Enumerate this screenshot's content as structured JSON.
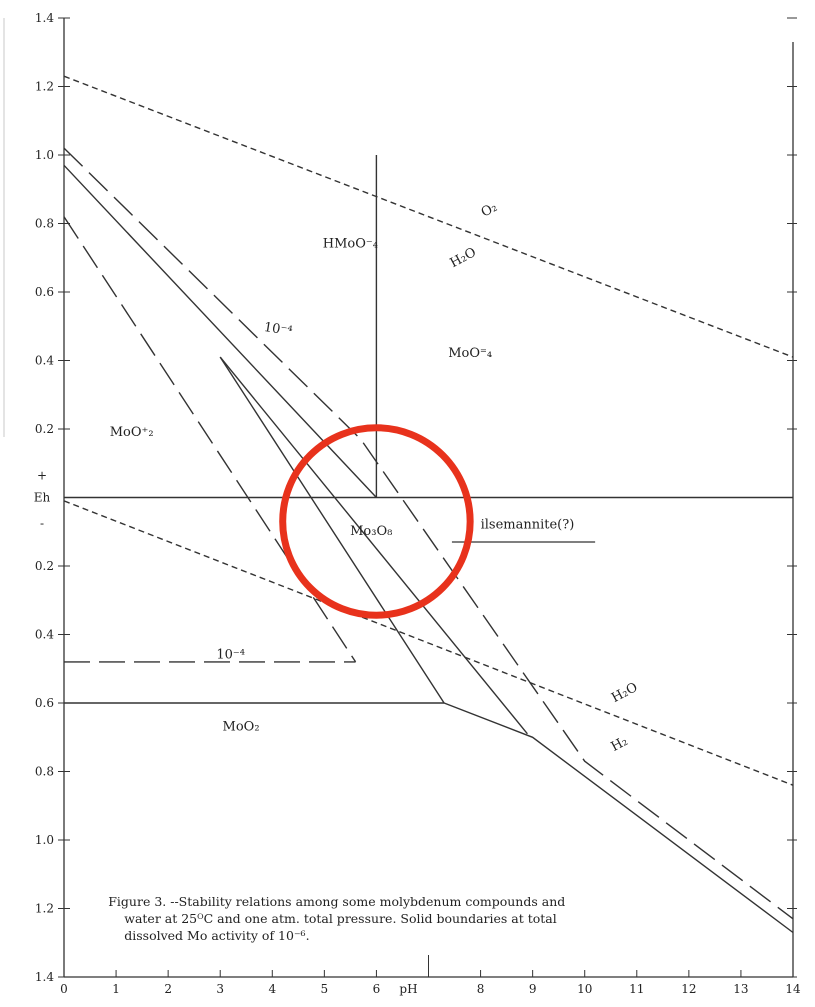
{
  "chart_data": {
    "type": "line",
    "title": "",
    "xlabel": "pH",
    "ylabel": "Eh",
    "xlim": [
      0,
      14
    ],
    "ylim": [
      -1.4,
      1.4
    ],
    "x_ticks": [
      {
        "value": 0,
        "label": "0"
      },
      {
        "value": 1,
        "label": "1"
      },
      {
        "value": 2,
        "label": "2"
      },
      {
        "value": 3,
        "label": "3"
      },
      {
        "value": 4,
        "label": "4"
      },
      {
        "value": 5,
        "label": "5"
      },
      {
        "value": 6,
        "label": "6"
      },
      {
        "value": 8,
        "label": "8"
      },
      {
        "value": 9,
        "label": "9"
      },
      {
        "value": 10,
        "label": "10"
      },
      {
        "value": 11,
        "label": "11"
      },
      {
        "value": 12,
        "label": "12"
      },
      {
        "value": 13,
        "label": "13"
      },
      {
        "value": 14,
        "label": "14"
      }
    ],
    "y_ticks": [
      {
        "value": 1.4,
        "label": "1.4"
      },
      {
        "value": 1.2,
        "label": "1.2"
      },
      {
        "value": 1.0,
        "label": "1.0"
      },
      {
        "value": 0.8,
        "label": "0.8"
      },
      {
        "value": 0.6,
        "label": "0.6"
      },
      {
        "value": 0.4,
        "label": "0.4"
      },
      {
        "value": 0.2,
        "label": "0.2"
      },
      {
        "value": -0.2,
        "label": "0.2"
      },
      {
        "value": -0.4,
        "label": "0.4"
      },
      {
        "value": -0.6,
        "label": "0.6"
      },
      {
        "value": -0.8,
        "label": "0.8"
      },
      {
        "value": -1.0,
        "label": "1.0"
      },
      {
        "value": -1.2,
        "label": "1.2"
      },
      {
        "value": -1.4,
        "label": "1.4"
      }
    ],
    "y_sign_labels": {
      "plus": "+",
      "minus": "-"
    },
    "series": [
      {
        "style": "short-dash",
        "points": [
          [
            0,
            1.23
          ],
          [
            14,
            0.41
          ]
        ]
      },
      {
        "style": "short-dash",
        "points": [
          [
            0,
            -0.01
          ],
          [
            14,
            -0.84
          ]
        ]
      },
      {
        "style": "solid",
        "points": [
          [
            0,
            0.0
          ],
          [
            14,
            0.0
          ]
        ]
      },
      {
        "style": "solid",
        "points": [
          [
            6.0,
            0.0
          ],
          [
            6.0,
            1.0
          ]
        ]
      },
      {
        "style": "solid",
        "points": [
          [
            0,
            0.97
          ],
          [
            6.0,
            0.0
          ]
        ]
      },
      {
        "style": "solid",
        "points": [
          [
            3.0,
            0.41
          ],
          [
            8.9,
            -0.69
          ]
        ]
      },
      {
        "style": "solid",
        "points": [
          [
            3.0,
            0.41
          ],
          [
            7.3,
            -0.6
          ]
        ]
      },
      {
        "style": "solid",
        "points": [
          [
            0,
            -0.6
          ],
          [
            7.3,
            -0.6
          ]
        ]
      },
      {
        "style": "solid",
        "points": [
          [
            7.3,
            -0.6
          ],
          [
            9.0,
            -0.7
          ],
          [
            14,
            -1.27
          ]
        ]
      },
      {
        "style": "long-dash",
        "points": [
          [
            0,
            1.02
          ],
          [
            5.7,
            0.17
          ],
          [
            10.0,
            -0.77
          ],
          [
            14,
            -1.23
          ]
        ]
      },
      {
        "style": "long-dash",
        "points": [
          [
            0,
            0.82
          ],
          [
            5.6,
            -0.48
          ]
        ]
      },
      {
        "style": "long-dash",
        "points": [
          [
            0,
            -0.48
          ],
          [
            5.6,
            -0.48
          ]
        ]
      }
    ],
    "labels": [
      {
        "text": "HMoO⁻₄",
        "x": 5.5,
        "y": 0.73
      },
      {
        "text": "MoO⁼₄",
        "x": 7.8,
        "y": 0.41
      },
      {
        "text": "MoO⁺₂",
        "x": 1.3,
        "y": 0.18
      },
      {
        "text": "Mo₃O₈",
        "x": 5.9,
        "y": -0.11
      },
      {
        "text": "MoO₂",
        "x": 3.4,
        "y": -0.68
      },
      {
        "text": "10⁻⁴",
        "x": 4.1,
        "y": 0.48,
        "angle": -9
      },
      {
        "text": "10⁻⁴",
        "x": 3.2,
        "y": -0.47
      },
      {
        "text": "ilsemannite(?)",
        "x": 8.9,
        "y": -0.09
      },
      {
        "text": "O₂",
        "x": 8.2,
        "y": 0.83,
        "angle": 28
      },
      {
        "text": "H₂O",
        "x": 7.7,
        "y": 0.69,
        "angle": 28
      },
      {
        "text": "H₂O",
        "x": 10.8,
        "y": -0.58,
        "angle": 28
      },
      {
        "text": "H₂",
        "x": 10.7,
        "y": -0.73,
        "angle": 28
      }
    ],
    "caption": [
      "Figure 3. --Stability relations among some molybdenum compounds and",
      "water at 25ᴼC and one atm. total pressure.  Solid boundaries at total",
      "dissolved Mo activity of 10⁻⁶."
    ],
    "annotation": {
      "shape": "circle",
      "color": "#e8321c",
      "center_x": 6.0,
      "center_y": -0.07,
      "radius_x": 1.8
    }
  }
}
